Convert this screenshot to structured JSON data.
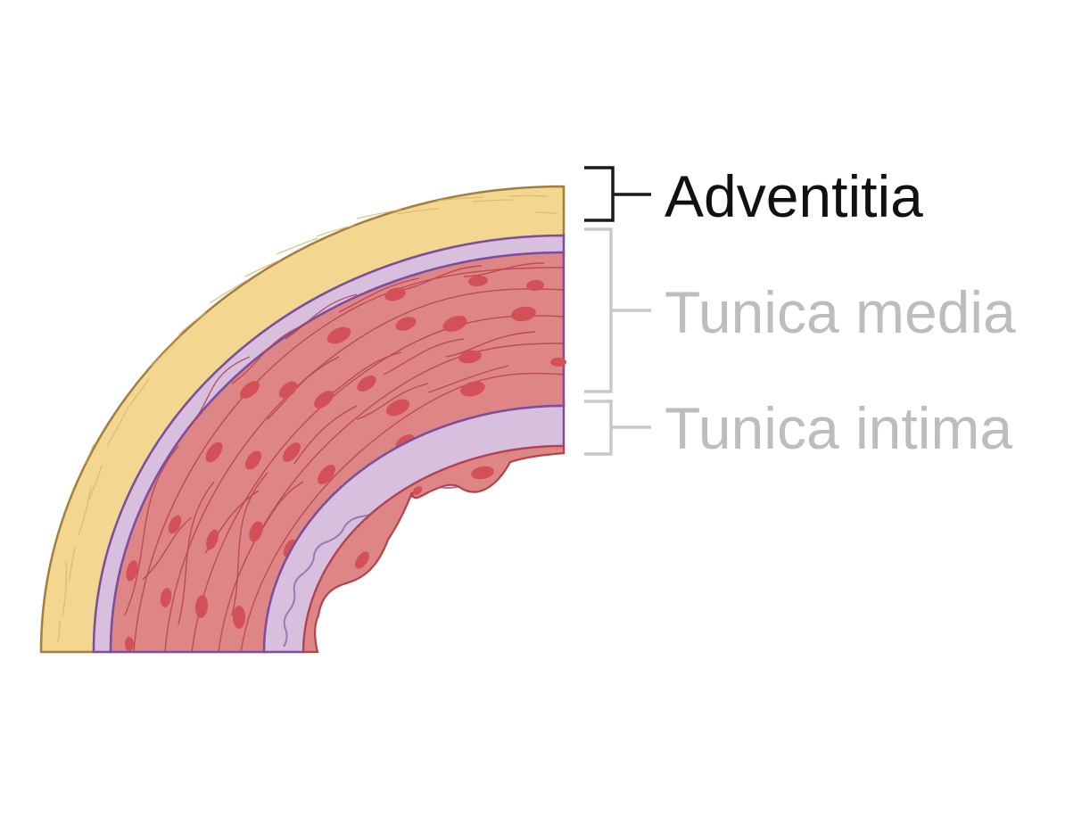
{
  "labels": {
    "adventitia": "Adventitia",
    "tunica_media": "Tunica media",
    "tunica_intima": "Tunica intima"
  },
  "highlighted_layer": "adventitia",
  "colors": {
    "adventitia_fill": "#F3D68F",
    "adventitia_stroke": "#A37E3E",
    "elastic_fill": "#D7BFDD",
    "elastic_stroke": "#7C4E9E",
    "media_fill": "#DE8585",
    "muscle_line": "#B7414A",
    "nucleus": "#D45058",
    "label_active": "#111111",
    "label_inactive": "#BDBDBD",
    "bracket_active": "#1a1a1a",
    "bracket_inactive": "#C8C8C8"
  }
}
